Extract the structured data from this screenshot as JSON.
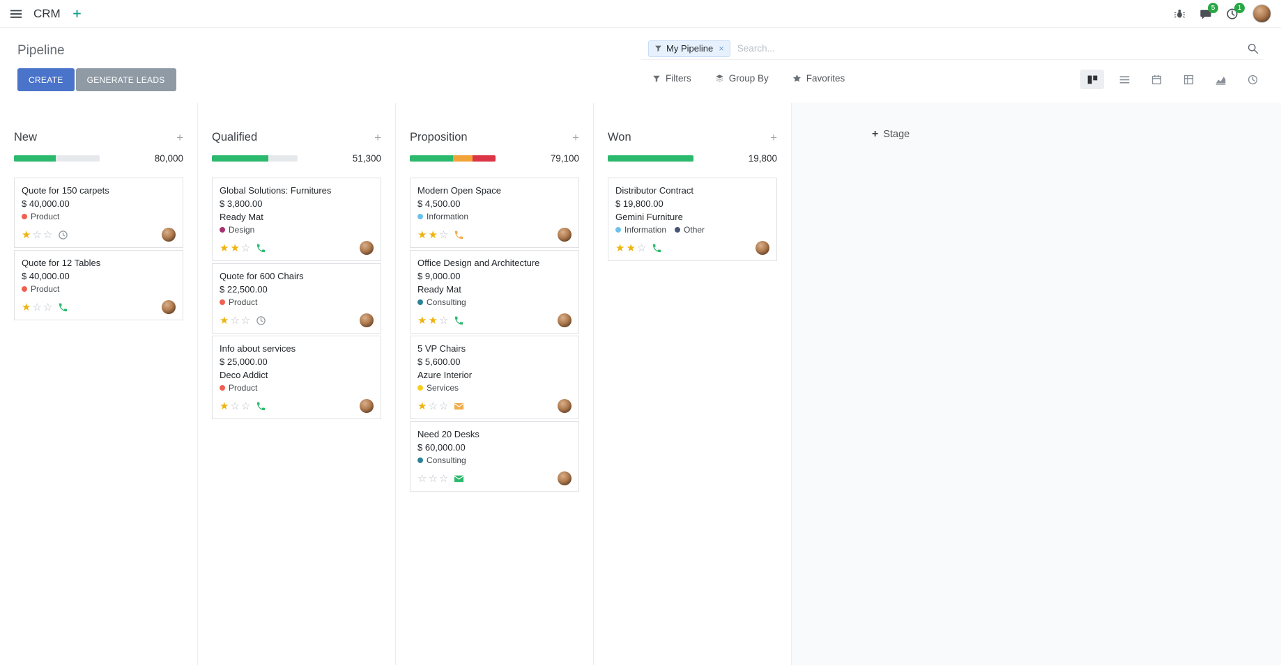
{
  "navbar": {
    "app_name": "CRM",
    "messages_badge": "5",
    "activities_badge": "1"
  },
  "control_panel": {
    "title": "Pipeline",
    "search": {
      "facet_label": "My Pipeline",
      "facet_remove": "×",
      "placeholder": "Search..."
    },
    "buttons": {
      "create": "CREATE",
      "generate_leads": "GENERATE LEADS"
    },
    "menus": {
      "filters": "Filters",
      "group_by": "Group By",
      "favorites": "Favorites"
    },
    "view_switcher": {
      "views": [
        "kanban",
        "list",
        "calendar",
        "pivot",
        "graph",
        "activity"
      ],
      "active": "kanban"
    }
  },
  "icons": {
    "plus": "+",
    "star_filled": "★",
    "star_empty": "☆"
  },
  "colors": {
    "primary_button": "#4a74c9",
    "secondary_button": "#8f9aa5",
    "progress_green": "#2bb96d",
    "progress_orange": "#f2a33a",
    "progress_red": "#dc3545",
    "badge_green": "#28a745",
    "star_gold": "#efb30e",
    "activity_green": "#2bb96d",
    "activity_orange": "#f0ad4e",
    "activity_gray": "#8f959b"
  },
  "kanban": {
    "add_stage_label": "Stage",
    "columns": [
      {
        "name": "New",
        "total": "80,000",
        "progress": [
          {
            "color": "#2bb96d",
            "pct": 49
          }
        ],
        "cards": [
          {
            "title": "Quote for 150 carpets",
            "amount": "$ 40,000.00",
            "partner": "",
            "tags": [
              {
                "label": "Product",
                "color": "#f06050"
              }
            ],
            "stars": 1,
            "activity": {
              "type": "clock",
              "color": "#8f959b"
            }
          },
          {
            "title": "Quote for 12 Tables",
            "amount": "$ 40,000.00",
            "partner": "",
            "tags": [
              {
                "label": "Product",
                "color": "#f06050"
              }
            ],
            "stars": 1,
            "activity": {
              "type": "phone",
              "color": "#2bb96d"
            }
          }
        ]
      },
      {
        "name": "Qualified",
        "total": "51,300",
        "progress": [
          {
            "color": "#2bb96d",
            "pct": 66
          }
        ],
        "cards": [
          {
            "title": "Global Solutions: Furnitures",
            "amount": "$ 3,800.00",
            "partner": "Ready Mat",
            "tags": [
              {
                "label": "Design",
                "color": "#a5326e"
              }
            ],
            "stars": 2,
            "activity": {
              "type": "phone",
              "color": "#2bb96d"
            }
          },
          {
            "title": "Quote for 600 Chairs",
            "amount": "$ 22,500.00",
            "partner": "",
            "tags": [
              {
                "label": "Product",
                "color": "#f06050"
              }
            ],
            "stars": 1,
            "activity": {
              "type": "clock",
              "color": "#8f959b"
            }
          },
          {
            "title": "Info about services",
            "amount": "$ 25,000.00",
            "partner": "Deco Addict",
            "tags": [
              {
                "label": "Product",
                "color": "#f06050"
              }
            ],
            "stars": 1,
            "activity": {
              "type": "phone",
              "color": "#2bb96d"
            }
          }
        ]
      },
      {
        "name": "Proposition",
        "total": "79,100",
        "progress": [
          {
            "color": "#2bb96d",
            "pct": 50
          },
          {
            "color": "#f2a33a",
            "pct": 23
          },
          {
            "color": "#dc3545",
            "pct": 27
          }
        ],
        "cards": [
          {
            "title": "Modern Open Space",
            "amount": "$ 4,500.00",
            "partner": "",
            "tags": [
              {
                "label": "Information",
                "color": "#6cc1ed"
              }
            ],
            "stars": 2,
            "activity": {
              "type": "phone",
              "color": "#f0ad4e"
            }
          },
          {
            "title": "Office Design and Architecture",
            "amount": "$ 9,000.00",
            "partner": "Ready Mat",
            "tags": [
              {
                "label": "Consulting",
                "color": "#2c8397"
              }
            ],
            "stars": 2,
            "activity": {
              "type": "phone",
              "color": "#2bb96d"
            }
          },
          {
            "title": "5 VP Chairs",
            "amount": "$ 5,600.00",
            "partner": "Azure Interior",
            "tags": [
              {
                "label": "Services",
                "color": "#f7cd1f"
              }
            ],
            "stars": 1,
            "activity": {
              "type": "envelope",
              "color": "#f0ad4e"
            }
          },
          {
            "title": "Need 20 Desks",
            "amount": "$ 60,000.00",
            "partner": "",
            "tags": [
              {
                "label": "Consulting",
                "color": "#2c8397"
              }
            ],
            "stars": 0,
            "activity": {
              "type": "envelope",
              "color": "#2bb96d"
            }
          }
        ]
      },
      {
        "name": "Won",
        "total": "19,800",
        "progress": [
          {
            "color": "#2bb96d",
            "pct": 100
          }
        ],
        "cards": [
          {
            "title": "Distributor Contract",
            "amount": "$ 19,800.00",
            "partner": "Gemini Furniture",
            "tags": [
              {
                "label": "Information",
                "color": "#6cc1ed"
              },
              {
                "label": "Other",
                "color": "#475577"
              }
            ],
            "stars": 2,
            "activity": {
              "type": "phone",
              "color": "#2bb96d"
            }
          }
        ]
      }
    ]
  }
}
